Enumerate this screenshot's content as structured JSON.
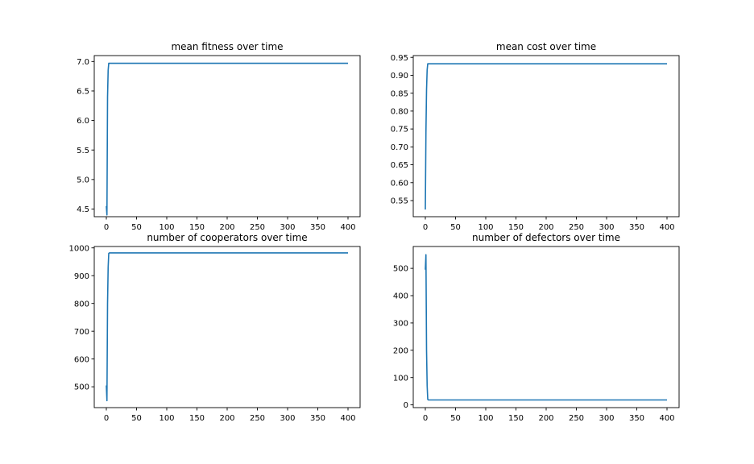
{
  "figure": {
    "background": "#ffffff",
    "line_color": "#1f77b4"
  },
  "chart_data": [
    {
      "type": "line",
      "title": "mean fitness over time",
      "xlabel": "",
      "ylabel": "",
      "xlim": [
        -20,
        420
      ],
      "ylim": [
        4.37,
        7.1
      ],
      "xticks": [
        0,
        50,
        100,
        150,
        200,
        250,
        300,
        350,
        400
      ],
      "yticks": [
        4.5,
        5.0,
        5.5,
        6.0,
        6.5,
        7.0
      ],
      "ytick_labels": [
        "4.5",
        "5.0",
        "5.5",
        "6.0",
        "6.5",
        "7.0"
      ],
      "grid": false,
      "series": [
        {
          "x": [
            0,
            1,
            2,
            3,
            4,
            5,
            400
          ],
          "y": [
            4.55,
            4.4,
            6.4,
            6.85,
            6.97,
            6.97,
            6.97
          ]
        }
      ]
    },
    {
      "type": "line",
      "title": "mean cost over time",
      "xlabel": "",
      "ylabel": "",
      "xlim": [
        -20,
        420
      ],
      "ylim": [
        0.505,
        0.955
      ],
      "xticks": [
        0,
        50,
        100,
        150,
        200,
        250,
        300,
        350,
        400
      ],
      "yticks": [
        0.55,
        0.6,
        0.65,
        0.7,
        0.75,
        0.8,
        0.85,
        0.9,
        0.95
      ],
      "ytick_labels": [
        "0.55",
        "0.60",
        "0.65",
        "0.70",
        "0.75",
        "0.80",
        "0.85",
        "0.90",
        "0.95"
      ],
      "grid": false,
      "series": [
        {
          "x": [
            0,
            1,
            2,
            3,
            4,
            5,
            400
          ],
          "y": [
            0.525,
            0.74,
            0.86,
            0.915,
            0.932,
            0.932,
            0.932
          ]
        }
      ]
    },
    {
      "type": "line",
      "title": "number of cooperators over time",
      "xlabel": "",
      "ylabel": "",
      "xlim": [
        -20,
        420
      ],
      "ylim": [
        425,
        1005
      ],
      "xticks": [
        0,
        50,
        100,
        150,
        200,
        250,
        300,
        350,
        400
      ],
      "yticks": [
        500,
        600,
        700,
        800,
        900,
        1000
      ],
      "ytick_labels": [
        "500",
        "600",
        "700",
        "800",
        "900",
        "1000"
      ],
      "grid": false,
      "series": [
        {
          "x": [
            0,
            1,
            2,
            3,
            4,
            5,
            400
          ],
          "y": [
            505,
            450,
            800,
            930,
            980,
            982,
            982
          ]
        }
      ]
    },
    {
      "type": "line",
      "title": "number of defectors over time",
      "xlabel": "",
      "ylabel": "",
      "xlim": [
        -20,
        420
      ],
      "ylim": [
        -10,
        580
      ],
      "xticks": [
        0,
        50,
        100,
        150,
        200,
        250,
        300,
        350,
        400
      ],
      "yticks": [
        0,
        100,
        200,
        300,
        400,
        500
      ],
      "ytick_labels": [
        "0",
        "100",
        "200",
        "300",
        "400",
        "500"
      ],
      "grid": false,
      "series": [
        {
          "x": [
            0,
            1,
            2,
            3,
            4,
            5,
            400
          ],
          "y": [
            495,
            550,
            200,
            70,
            20,
            18,
            18
          ]
        }
      ]
    }
  ]
}
